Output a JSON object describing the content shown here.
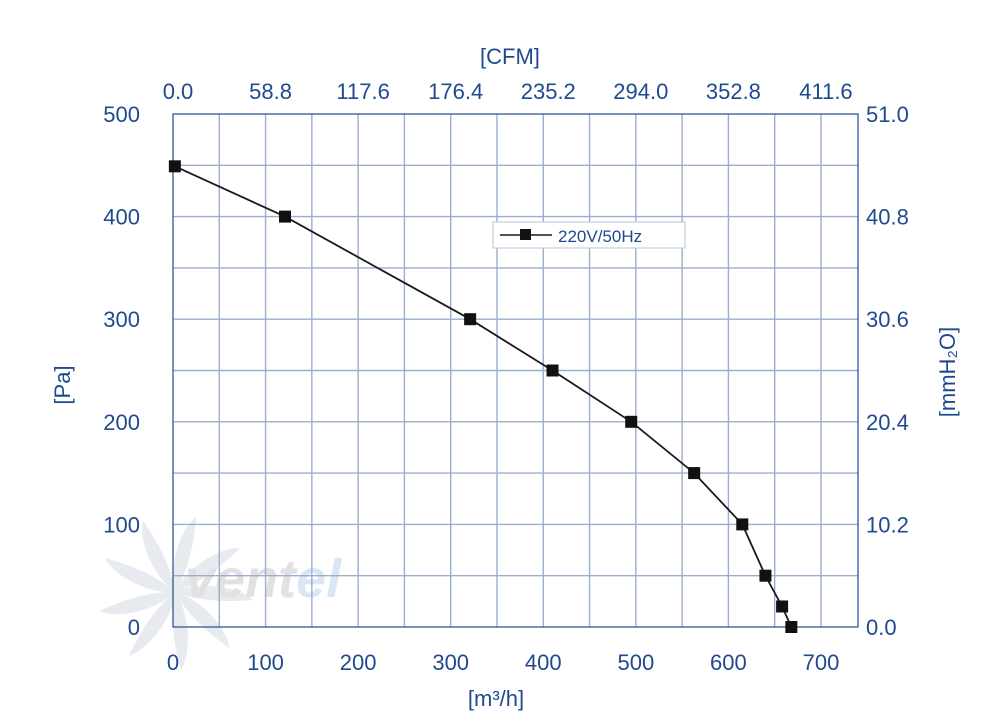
{
  "watermark": {
    "text_dark": "vent",
    "text_light": "el"
  },
  "chart_data": {
    "type": "line",
    "title": "",
    "xlabel": "[m³/h]",
    "xlabel_top": "[CFM]",
    "ylabel": "[Pa]",
    "ylabel_right": "[mmH₂O]",
    "xlim": [
      0,
      740
    ],
    "ylim": [
      0,
      500
    ],
    "x_ticks": [
      "0",
      "100",
      "200",
      "300",
      "400",
      "500",
      "600",
      "700"
    ],
    "x_tick_values": [
      0,
      100,
      200,
      300,
      400,
      500,
      600,
      700
    ],
    "x_top_ticks": [
      "0.0",
      "58.8",
      "117.6",
      "176.4",
      "235.2",
      "294.0",
      "352.8",
      "411.6"
    ],
    "y_ticks": [
      "0",
      "100",
      "200",
      "300",
      "400",
      "500"
    ],
    "y_tick_values": [
      0,
      100,
      200,
      300,
      400,
      500
    ],
    "y_right_ticks": [
      "0.0",
      "10.2",
      "20.4",
      "30.6",
      "40.8",
      "51.0"
    ],
    "grid": true,
    "legend": {
      "placement": "top-center",
      "entries": [
        "220V/50Hz"
      ]
    },
    "series": [
      {
        "name": "220V/50Hz",
        "x": [
          2,
          121,
          321,
          410,
          495,
          563,
          615,
          640,
          658,
          668
        ],
        "y": [
          449,
          400,
          300,
          250,
          200,
          150,
          100,
          50,
          20,
          0
        ]
      }
    ],
    "colors": {
      "axis_text": "#1f4a8f",
      "grid": "#9aaed0",
      "line": "#1a1a1a",
      "marker": "#111111"
    }
  }
}
